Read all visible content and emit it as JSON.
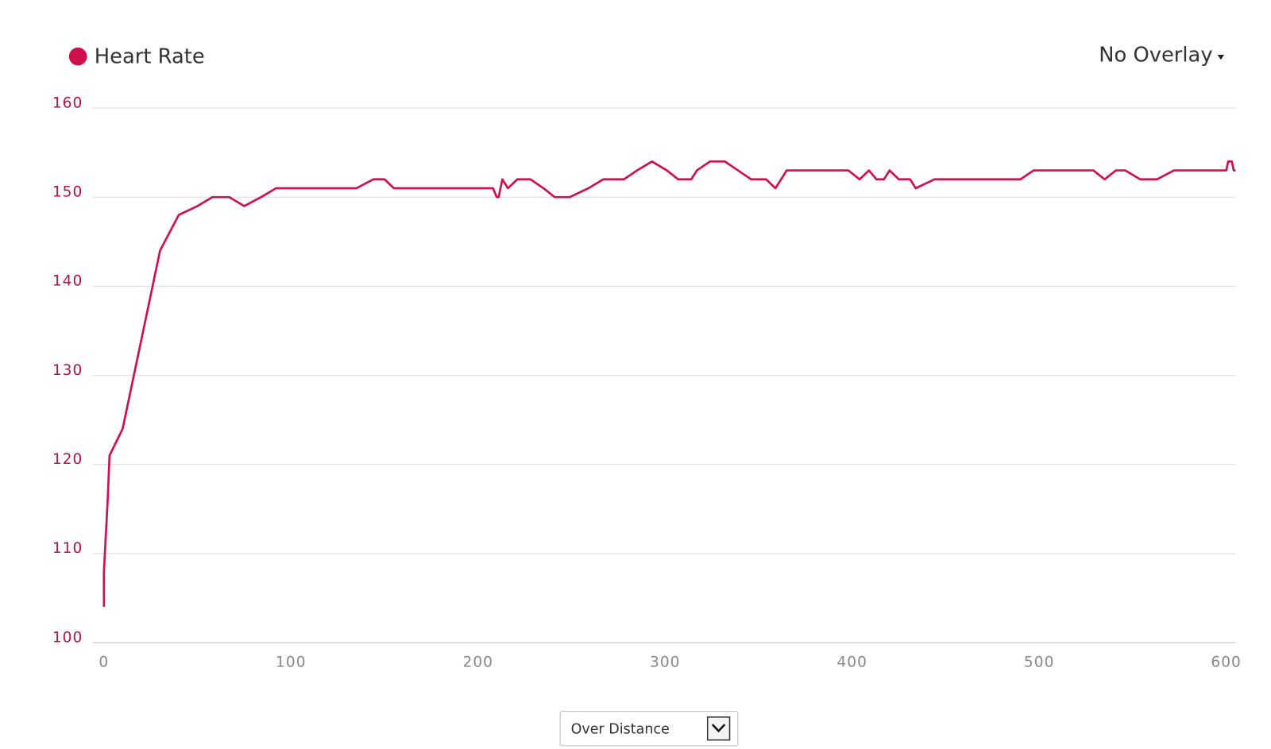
{
  "chart_data": {
    "type": "line",
    "x": [
      0,
      0,
      1,
      2,
      3,
      10,
      17,
      23,
      30,
      40,
      50,
      58,
      67,
      75,
      84,
      92,
      135,
      144,
      150,
      155,
      208,
      210,
      211,
      213,
      216,
      221,
      228,
      235,
      241,
      249,
      259,
      267,
      278,
      285,
      293,
      301,
      307,
      314,
      317,
      324,
      332,
      339,
      346,
      354,
      359,
      365,
      398,
      404,
      409,
      413,
      417,
      420,
      425,
      431,
      434,
      444,
      490,
      497,
      529,
      535,
      541,
      546,
      554,
      563,
      572,
      600,
      601,
      603,
      604,
      605
    ],
    "series": [
      {
        "name": "Heart Rate",
        "color": "#d0104c",
        "values": [
          104,
          108,
          112,
          116,
          121,
          124,
          131,
          137,
          144,
          148,
          149,
          150,
          150,
          149,
          150,
          151,
          151,
          152,
          152,
          151,
          151,
          150,
          150,
          152,
          151,
          152,
          152,
          151,
          150,
          150,
          151,
          152,
          152,
          153,
          154,
          153,
          152,
          152,
          153,
          154,
          154,
          153,
          152,
          152,
          151,
          153,
          153,
          152,
          153,
          152,
          152,
          153,
          152,
          152,
          151,
          152,
          152,
          153,
          153,
          152,
          153,
          153,
          152,
          152,
          153,
          153,
          154,
          154,
          153,
          153
        ]
      }
    ],
    "xlim": [
      -6,
      605
    ],
    "ylim": [
      100,
      160
    ],
    "xticks": [
      0,
      100,
      200,
      300,
      400,
      500,
      600
    ],
    "yticks": [
      100,
      110,
      120,
      130,
      140,
      150,
      160
    ],
    "grid": true
  },
  "overlay_menu": {
    "label": "No Overlay"
  },
  "x_mode_select": {
    "label": "Over Distance"
  }
}
